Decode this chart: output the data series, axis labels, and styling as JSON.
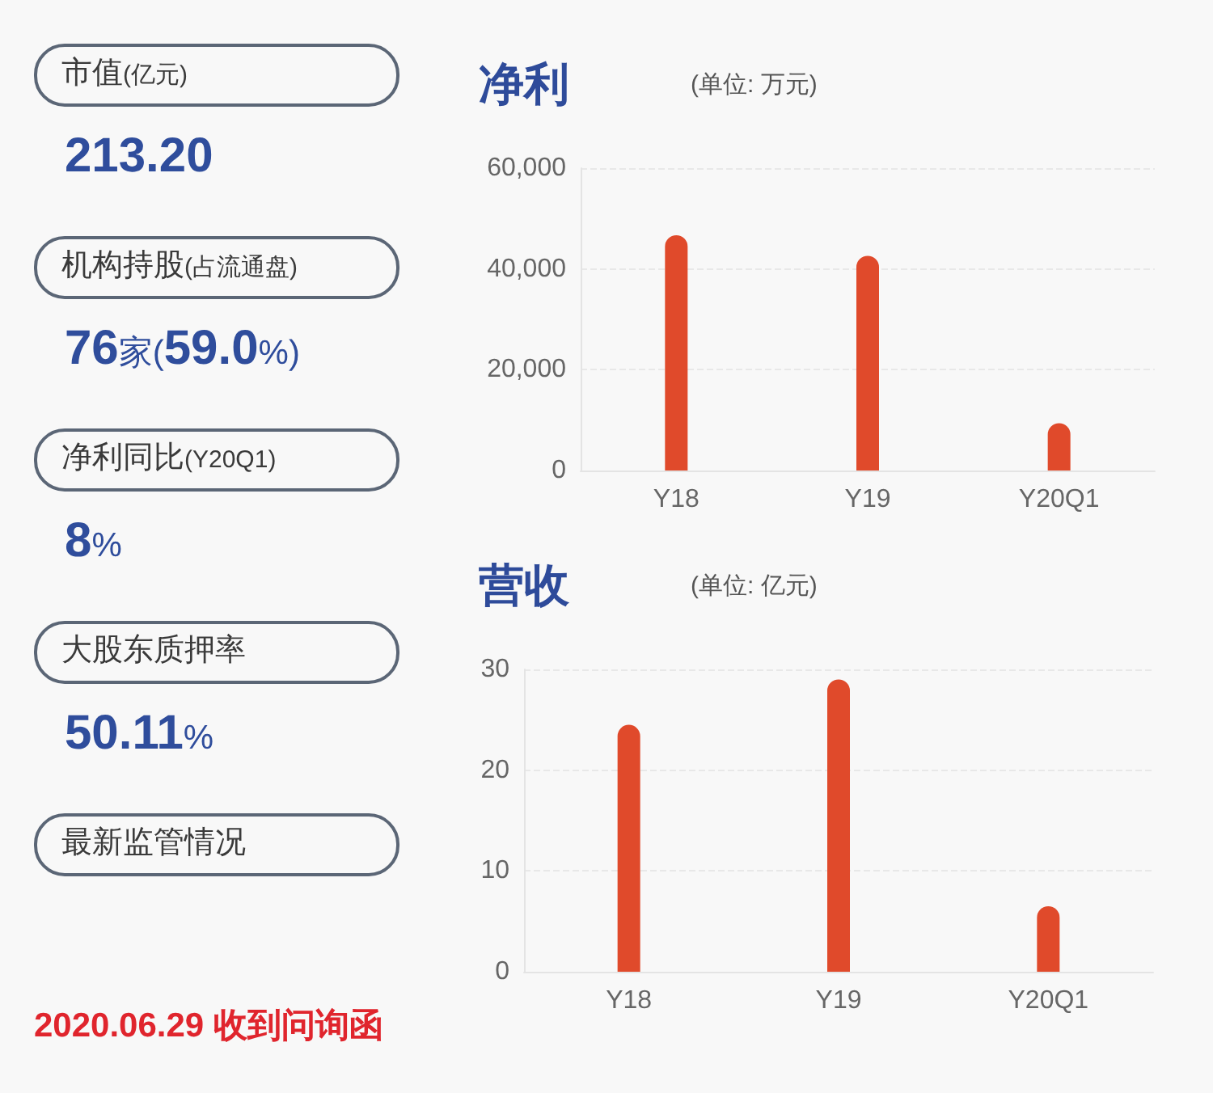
{
  "chart_data": [
    {
      "type": "other",
      "annotations": [
        "市值(亿元)",
        "213.20",
        "机构持股(占流通盘)",
        "76家(59.0%)",
        "净利同比(Y20Q1)",
        "8%",
        "大股东质押率",
        "50.11%",
        "最新监管情况",
        "2020.06.29 收到问询函"
      ]
    },
    {
      "type": "bar",
      "title": "净利",
      "subtitle": "(单位: 万元)",
      "categories": [
        "Y18",
        "Y19",
        "Y20Q1"
      ],
      "values": [
        46700,
        42600,
        9400
      ],
      "color": "#e04a2b",
      "ylim": [
        0,
        60000
      ],
      "yticks": [
        0,
        {
          "value": 20000,
          "label": "20,000"
        },
        {
          "value": 40000,
          "label": "40,000"
        },
        {
          "value": 60000,
          "label": "60,000"
        }
      ],
      "grid": "y"
    },
    {
      "type": "bar",
      "title": "营收",
      "subtitle": "(单位: 亿元)",
      "categories": [
        "Y18",
        "Y19",
        "Y20Q1"
      ],
      "values": [
        24.5,
        29,
        6.5
      ],
      "color": "#e04a2b",
      "ylim": [
        0,
        30
      ],
      "yticks": [
        0,
        10,
        20,
        30
      ],
      "grid": "y"
    }
  ]
}
